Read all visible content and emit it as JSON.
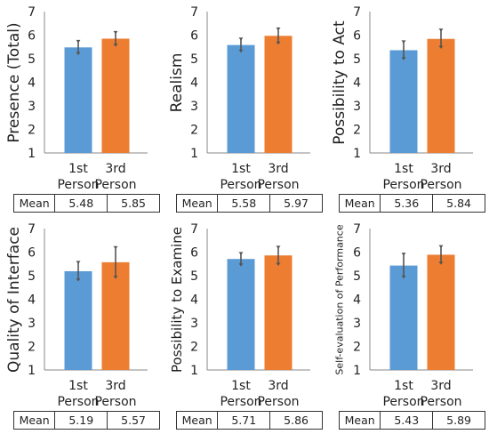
{
  "table_label": "Mean",
  "colors": {
    "first_person": "#5b9bd5",
    "third_person": "#ed7d31",
    "error_bar": "#555555"
  },
  "chart_data": [
    {
      "type": "bar",
      "ylabel": "Presence (Total)",
      "categories": [
        [
          "1st",
          "Person"
        ],
        [
          "3rd",
          "Person"
        ]
      ],
      "values": [
        5.48,
        5.85
      ],
      "errors": [
        [
          5.22,
          5.74
        ],
        [
          5.58,
          6.12
        ]
      ],
      "ylim": [
        1,
        7
      ],
      "yticks": [
        1,
        2,
        3,
        4,
        5,
        6,
        7
      ],
      "table": {
        "label": "Mean",
        "values": [
          "5.48",
          "5.85"
        ]
      }
    },
    {
      "type": "bar",
      "ylabel": "Realism",
      "categories": [
        [
          "1st",
          "Person"
        ],
        [
          "3rd",
          "Person"
        ]
      ],
      "values": [
        5.58,
        5.97
      ],
      "errors": [
        [
          5.33,
          5.84
        ],
        [
          5.67,
          6.27
        ]
      ],
      "ylim": [
        1,
        7
      ],
      "yticks": [
        1,
        2,
        3,
        4,
        5,
        6,
        7
      ],
      "table": {
        "label": "Mean",
        "values": [
          "5.58",
          "5.97"
        ]
      }
    },
    {
      "type": "bar",
      "ylabel": "Possibility to Act",
      "categories": [
        [
          "1st",
          "Person"
        ],
        [
          "3rd",
          "Person"
        ]
      ],
      "values": [
        5.36,
        5.84
      ],
      "errors": [
        [
          5.01,
          5.72
        ],
        [
          5.49,
          6.22
        ]
      ],
      "ylim": [
        1,
        7
      ],
      "yticks": [
        1,
        2,
        3,
        4,
        5,
        6,
        7
      ],
      "table": {
        "label": "Mean",
        "values": [
          "5.36",
          "5.84"
        ]
      }
    },
    {
      "type": "bar",
      "ylabel": "Quality of Interface",
      "categories": [
        [
          "1st",
          "Person"
        ],
        [
          "3rd",
          "Person"
        ]
      ],
      "values": [
        5.19,
        5.57
      ],
      "errors": [
        [
          4.83,
          5.57
        ],
        [
          4.94,
          6.2
        ]
      ],
      "ylim": [
        1,
        7
      ],
      "yticks": [
        1,
        2,
        3,
        4,
        5,
        6,
        7
      ],
      "table": {
        "label": "Mean",
        "values": [
          "5.19",
          "5.57"
        ]
      }
    },
    {
      "type": "bar",
      "ylabel": "Possibility to Examine",
      "categories": [
        [
          "1st",
          "Person"
        ],
        [
          "3rd",
          "Person"
        ]
      ],
      "values": [
        5.71,
        5.86
      ],
      "errors": [
        [
          5.46,
          5.95
        ],
        [
          5.49,
          6.21
        ]
      ],
      "ylim": [
        1,
        7
      ],
      "yticks": [
        1,
        2,
        3,
        4,
        5,
        6,
        7
      ],
      "table": {
        "label": "Mean",
        "values": [
          "5.71",
          "5.86"
        ]
      }
    },
    {
      "type": "bar",
      "ylabel": "Self-evaluation of Performance",
      "categories": [
        [
          "1st",
          "Person"
        ],
        [
          "3rd",
          "Person"
        ]
      ],
      "values": [
        5.43,
        5.89
      ],
      "errors": [
        [
          4.95,
          5.92
        ],
        [
          5.54,
          6.24
        ]
      ],
      "ylim": [
        1,
        7
      ],
      "yticks": [
        1,
        2,
        3,
        4,
        5,
        6,
        7
      ],
      "table": {
        "label": "Mean",
        "values": [
          "5.43",
          "5.89"
        ]
      }
    }
  ]
}
